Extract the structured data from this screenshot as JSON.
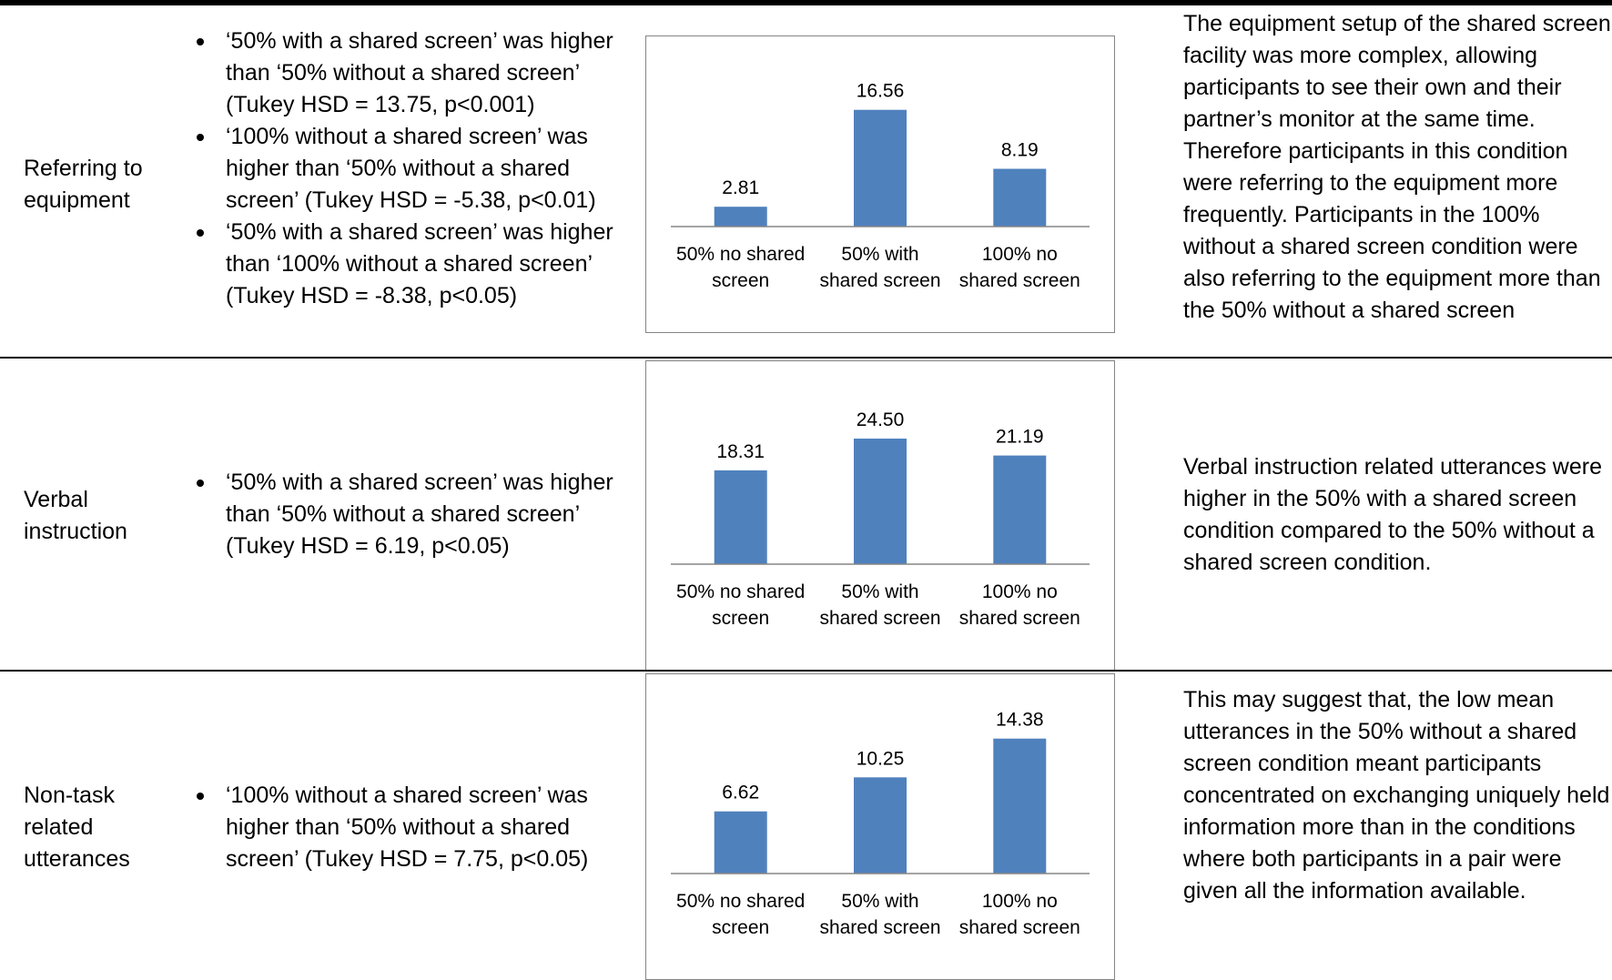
{
  "rows": [
    {
      "label": "Referring to equipment",
      "findings": [
        "‘50% with a shared screen’ was higher than ‘50% without a shared screen’ (Tukey HSD = 13.75, p<0.001)",
        "‘100% without a shared screen’ was higher than ‘50% without a shared screen’ (Tukey HSD = -5.38, p<0.01)",
        " ‘50% with a shared screen’ was higher than ‘100% without a shared screen’ (Tukey HSD = -8.38, p<0.05)"
      ],
      "notes": "The equipment setup of the shared screen facility was more complex, allowing participants to see their own and their partner’s monitor at the same time. Therefore participants in this condition were referring to the equipment more frequently. Participants in the 100% without a shared screen condition were also referring to the equipment more than the 50% without a shared screen"
    },
    {
      "label": "Verbal instruction",
      "findings": [
        "‘50% with a shared screen’ was higher than ‘50% without a shared screen’ (Tukey HSD = 6.19, p<0.05)"
      ],
      "notes": "Verbal instruction related utterances were higher in the 50% with a shared screen condition compared to the 50% without a shared screen condition."
    },
    {
      "label": "Non-task related utterances",
      "findings": [
        "‘100% without a shared screen’ was higher than ‘50% without a shared screen’ (Tukey HSD = 7.75, p<0.05)"
      ],
      "notes": "This may suggest that, the low mean utterances in the 50% without a shared screen condition meant participants concentrated on exchanging uniquely held information more than in the conditions where both participants in a pair were given all the information available."
    }
  ],
  "chart_data": [
    {
      "type": "bar",
      "categories": [
        "50% no shared screen",
        "50% with shared screen",
        "100% no shared screen"
      ],
      "category_lines": [
        [
          "50% no shared",
          "screen"
        ],
        [
          "50% with",
          "shared screen"
        ],
        [
          "100% no",
          "shared screen"
        ]
      ],
      "values": [
        2.81,
        16.56,
        8.19
      ],
      "value_labels": [
        "2.81",
        "16.56",
        "8.19"
      ],
      "bar_color": "#4F81BD",
      "ylim": [
        0,
        20
      ],
      "grid": false
    },
    {
      "type": "bar",
      "categories": [
        "50% no shared screen",
        "50% with shared screen",
        "100% no shared screen"
      ],
      "category_lines": [
        [
          "50% no shared",
          "screen"
        ],
        [
          "50% with",
          "shared screen"
        ],
        [
          "100% no",
          "shared screen"
        ]
      ],
      "values": [
        18.31,
        24.5,
        21.19
      ],
      "value_labels": [
        "18.31",
        "24.50",
        "21.19"
      ],
      "bar_color": "#4F81BD",
      "ylim": [
        0,
        30
      ],
      "grid": false
    },
    {
      "type": "bar",
      "categories": [
        "50% no shared screen",
        "50% with shared screen",
        "100% no shared screen"
      ],
      "category_lines": [
        [
          "50% no shared",
          "screen"
        ],
        [
          "50% with",
          "shared screen"
        ],
        [
          "100% no",
          "shared screen"
        ]
      ],
      "values": [
        6.62,
        10.25,
        14.38
      ],
      "value_labels": [
        "6.62",
        "10.25",
        "14.38"
      ],
      "bar_color": "#4F81BD",
      "ylim": [
        0,
        16
      ],
      "grid": false
    }
  ]
}
